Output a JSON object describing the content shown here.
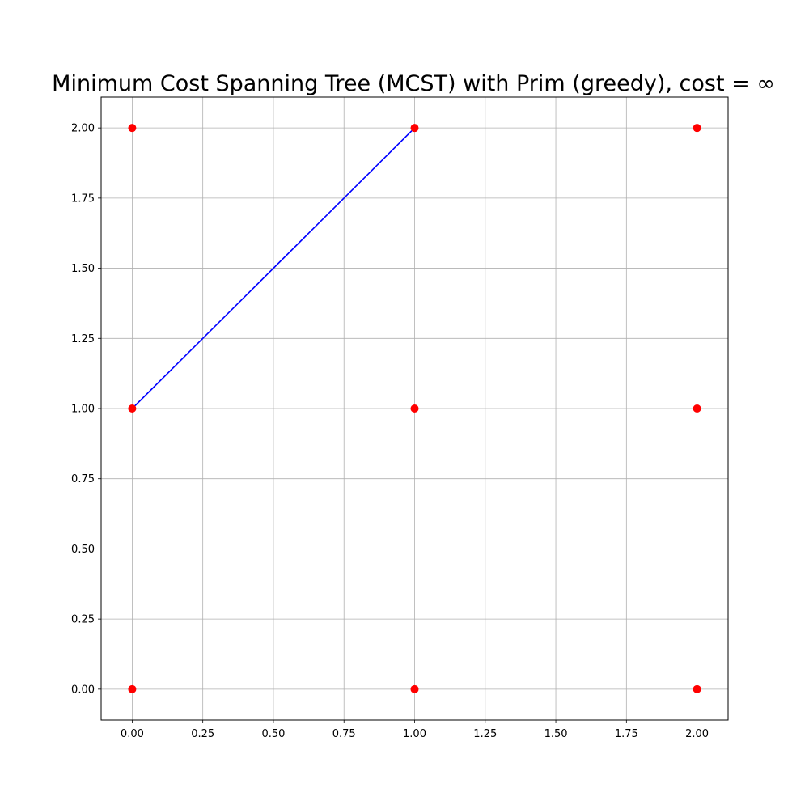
{
  "chart_data": {
    "type": "scatter",
    "title": "Minimum Cost Spanning Tree (MCST) with Prim (greedy), cost = ∞",
    "xlabel": "",
    "ylabel": "",
    "xlim": [
      -0.11,
      2.11
    ],
    "ylim": [
      -0.11,
      2.11
    ],
    "grid": true,
    "x_ticks": [
      "0.00",
      "0.25",
      "0.50",
      "0.75",
      "1.00",
      "1.25",
      "1.50",
      "1.75",
      "2.00"
    ],
    "y_ticks": [
      "0.00",
      "0.25",
      "0.50",
      "0.75",
      "1.00",
      "1.25",
      "1.50",
      "1.75",
      "2.00"
    ],
    "points": [
      {
        "x": 0,
        "y": 0
      },
      {
        "x": 1,
        "y": 0
      },
      {
        "x": 2,
        "y": 0
      },
      {
        "x": 0,
        "y": 1
      },
      {
        "x": 1,
        "y": 1
      },
      {
        "x": 2,
        "y": 1
      },
      {
        "x": 0,
        "y": 2
      },
      {
        "x": 1,
        "y": 2
      },
      {
        "x": 2,
        "y": 2
      }
    ],
    "edges": [
      {
        "from": [
          0,
          1
        ],
        "to": [
          1,
          2
        ]
      }
    ],
    "colors": {
      "points": "#ff0000",
      "edges": "#0000ff",
      "grid": "#b0b0b0"
    }
  }
}
